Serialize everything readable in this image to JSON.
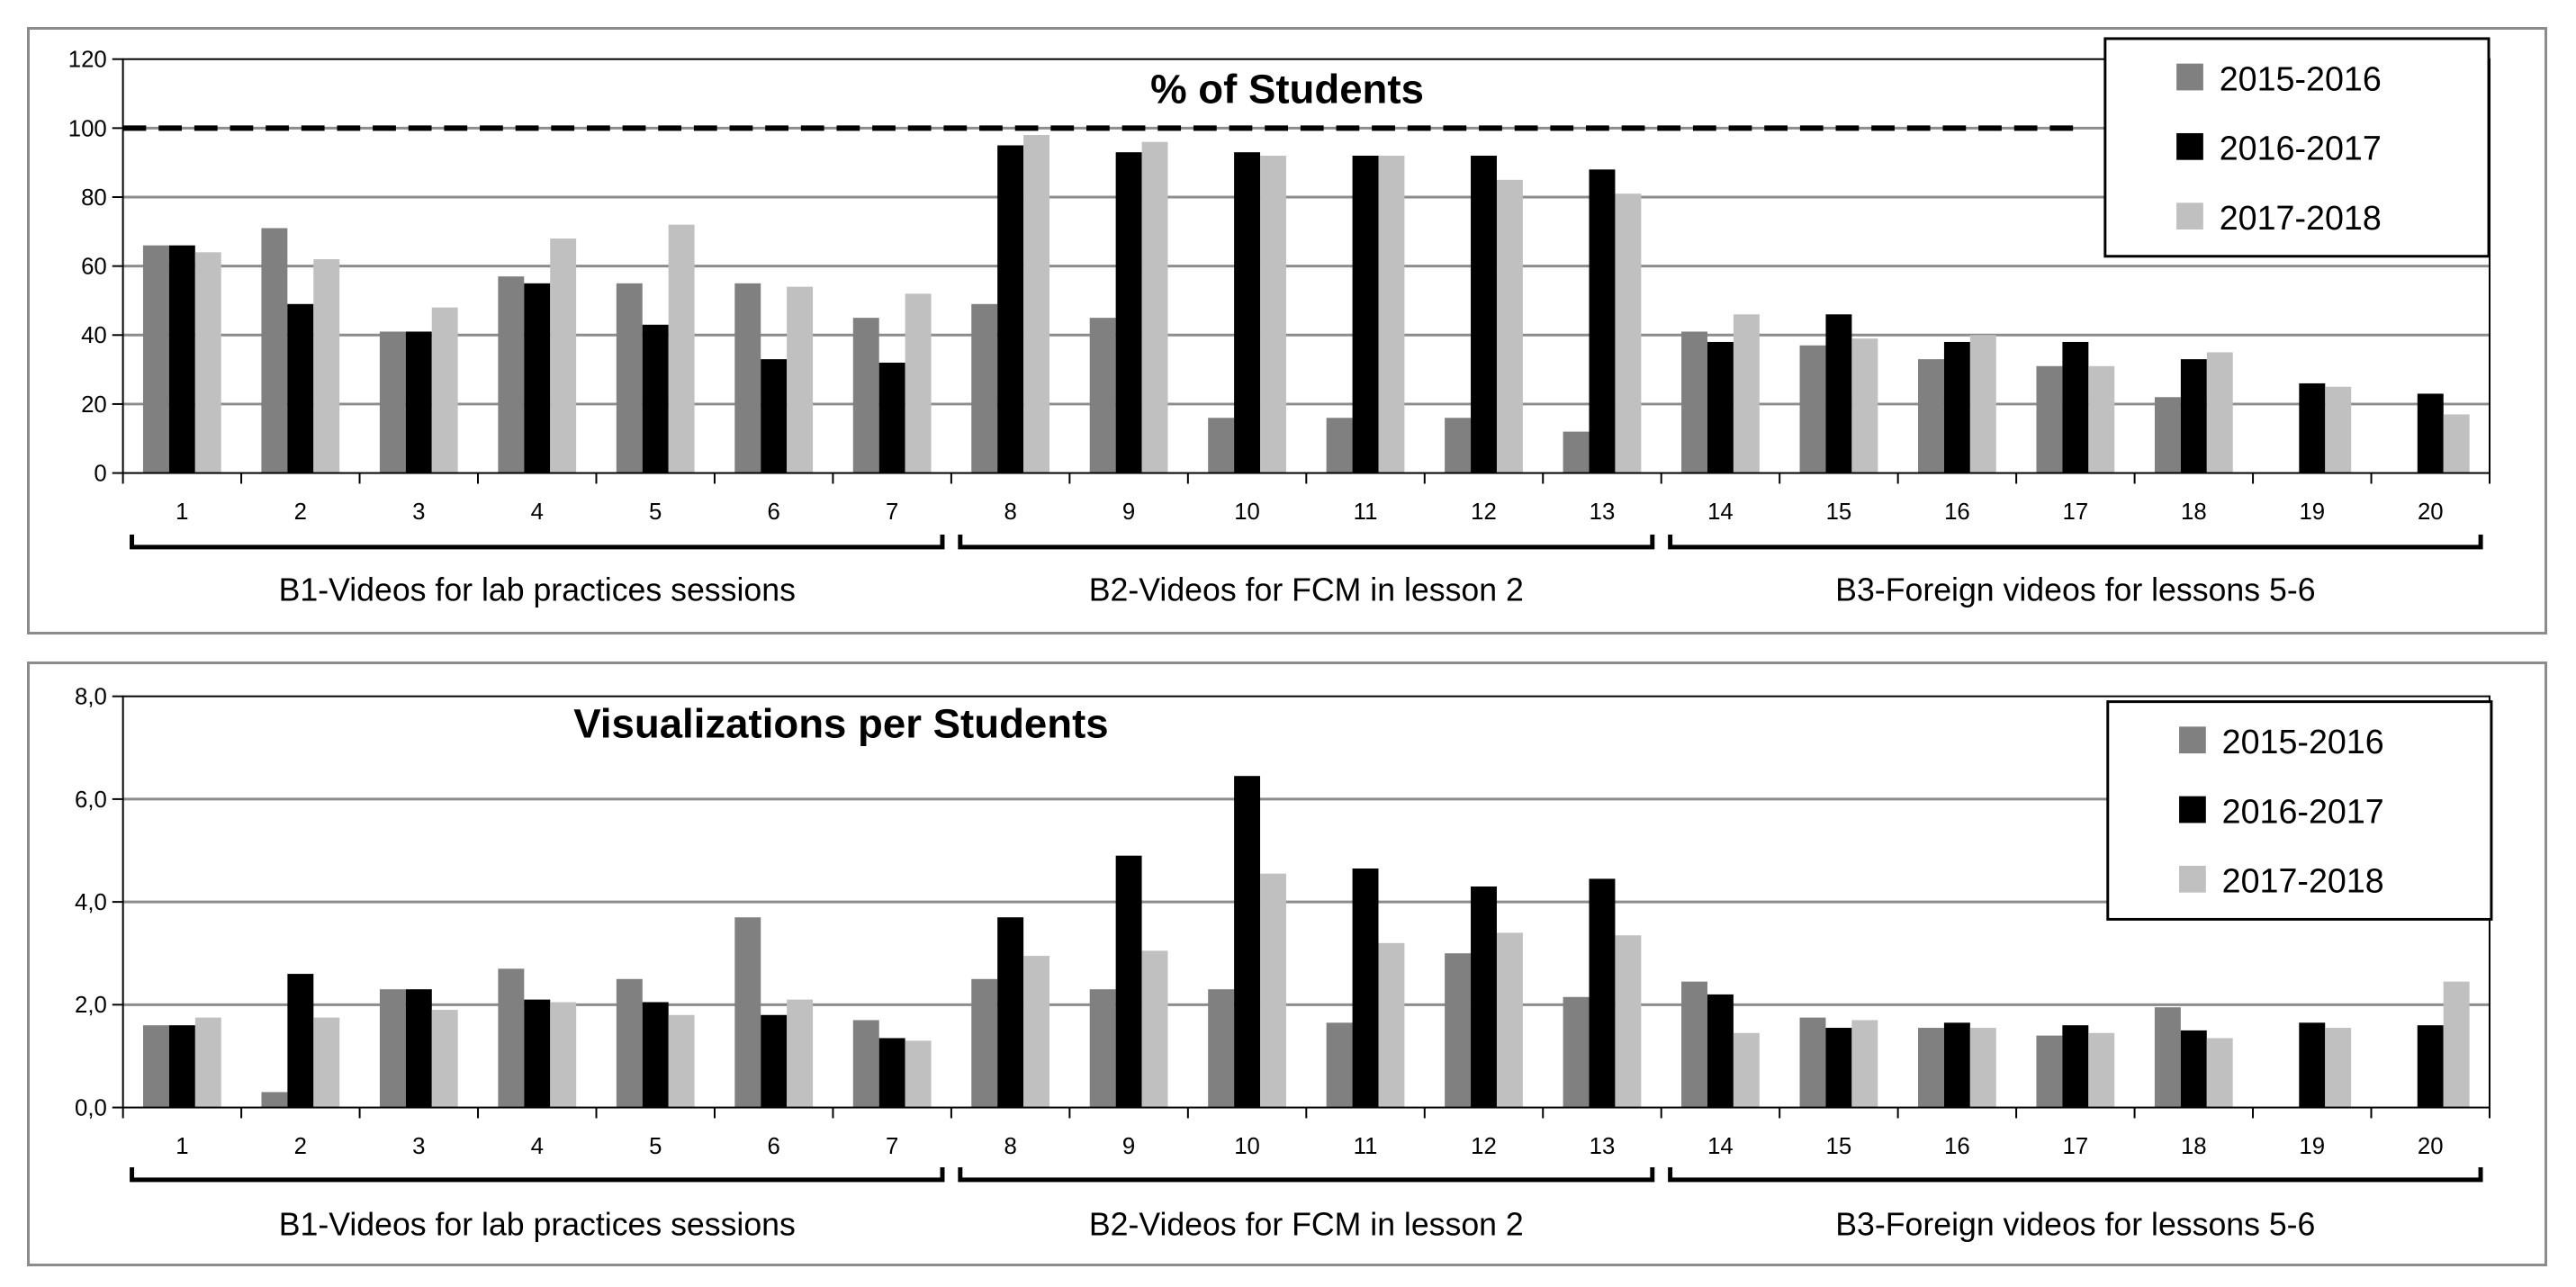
{
  "chart_data": [
    {
      "type": "bar",
      "title": "% of Students",
      "categories": [
        "1",
        "2",
        "3",
        "4",
        "5",
        "6",
        "7",
        "8",
        "9",
        "10",
        "11",
        "12",
        "13",
        "14",
        "15",
        "16",
        "17",
        "18",
        "19",
        "20"
      ],
      "ylim": [
        0,
        120
      ],
      "yticks": [
        "0",
        "20",
        "40",
        "60",
        "80",
        "100",
        "120"
      ],
      "reference_line": 100,
      "grid": true,
      "legend_position": "top-right",
      "series": [
        {
          "name": "2015-2016",
          "color": "#808080",
          "values": [
            66,
            71,
            41,
            57,
            55,
            55,
            45,
            49,
            45,
            16,
            16,
            16,
            12,
            41,
            37,
            33,
            31,
            22,
            null,
            null
          ]
        },
        {
          "name": "2016-2017",
          "color": "#000000",
          "values": [
            66,
            49,
            41,
            55,
            43,
            33,
            32,
            95,
            93,
            93,
            92,
            92,
            88,
            38,
            46,
            38,
            38,
            33,
            26,
            23
          ]
        },
        {
          "name": "2017-2018",
          "color": "#c0c0c0",
          "values": [
            64,
            62,
            48,
            68,
            72,
            54,
            52,
            98,
            96,
            92,
            92,
            85,
            81,
            46,
            39,
            40,
            31,
            35,
            25,
            17
          ]
        }
      ],
      "groups": [
        {
          "label": "B1-Videos for lab practices sessions",
          "from": 1,
          "to": 7
        },
        {
          "label": "B2-Videos for FCM in lesson 2",
          "from": 8,
          "to": 13
        },
        {
          "label": "B3-Foreign videos for lessons 5-6",
          "from": 14,
          "to": 20
        }
      ]
    },
    {
      "type": "bar",
      "title": "Visualizations per Students",
      "categories": [
        "1",
        "2",
        "3",
        "4",
        "5",
        "6",
        "7",
        "8",
        "9",
        "10",
        "11",
        "12",
        "13",
        "14",
        "15",
        "16",
        "17",
        "18",
        "19",
        "20"
      ],
      "ylim": [
        0,
        8
      ],
      "yticks": [
        "0,0",
        "2,0",
        "4,0",
        "6,0",
        "8,0"
      ],
      "grid": true,
      "legend_position": "top-right",
      "series": [
        {
          "name": "2015-2016",
          "color": "#808080",
          "values": [
            1.6,
            0.3,
            2.3,
            2.7,
            2.5,
            3.7,
            1.7,
            2.5,
            2.3,
            2.3,
            1.65,
            3.0,
            2.15,
            2.45,
            1.75,
            1.55,
            1.4,
            1.95,
            null,
            null
          ]
        },
        {
          "name": "2016-2017",
          "color": "#000000",
          "values": [
            1.6,
            2.6,
            2.3,
            2.1,
            2.05,
            1.8,
            1.35,
            3.7,
            4.9,
            6.45,
            4.65,
            4.3,
            4.45,
            2.2,
            1.55,
            1.65,
            1.6,
            1.5,
            1.65,
            1.6
          ]
        },
        {
          "name": "2017-2018",
          "color": "#c0c0c0",
          "values": [
            1.75,
            1.75,
            1.9,
            2.05,
            1.8,
            2.1,
            1.3,
            2.95,
            3.05,
            4.55,
            3.2,
            3.4,
            3.35,
            1.45,
            1.7,
            1.55,
            1.45,
            1.35,
            1.55,
            2.45
          ]
        }
      ],
      "groups": [
        {
          "label": "B1-Videos for lab practices sessions",
          "from": 1,
          "to": 7
        },
        {
          "label": "B2-Videos for FCM in lesson 2",
          "from": 8,
          "to": 13
        },
        {
          "label": "B3-Foreign videos for lessons 5-6",
          "from": 14,
          "to": 20
        }
      ]
    }
  ]
}
